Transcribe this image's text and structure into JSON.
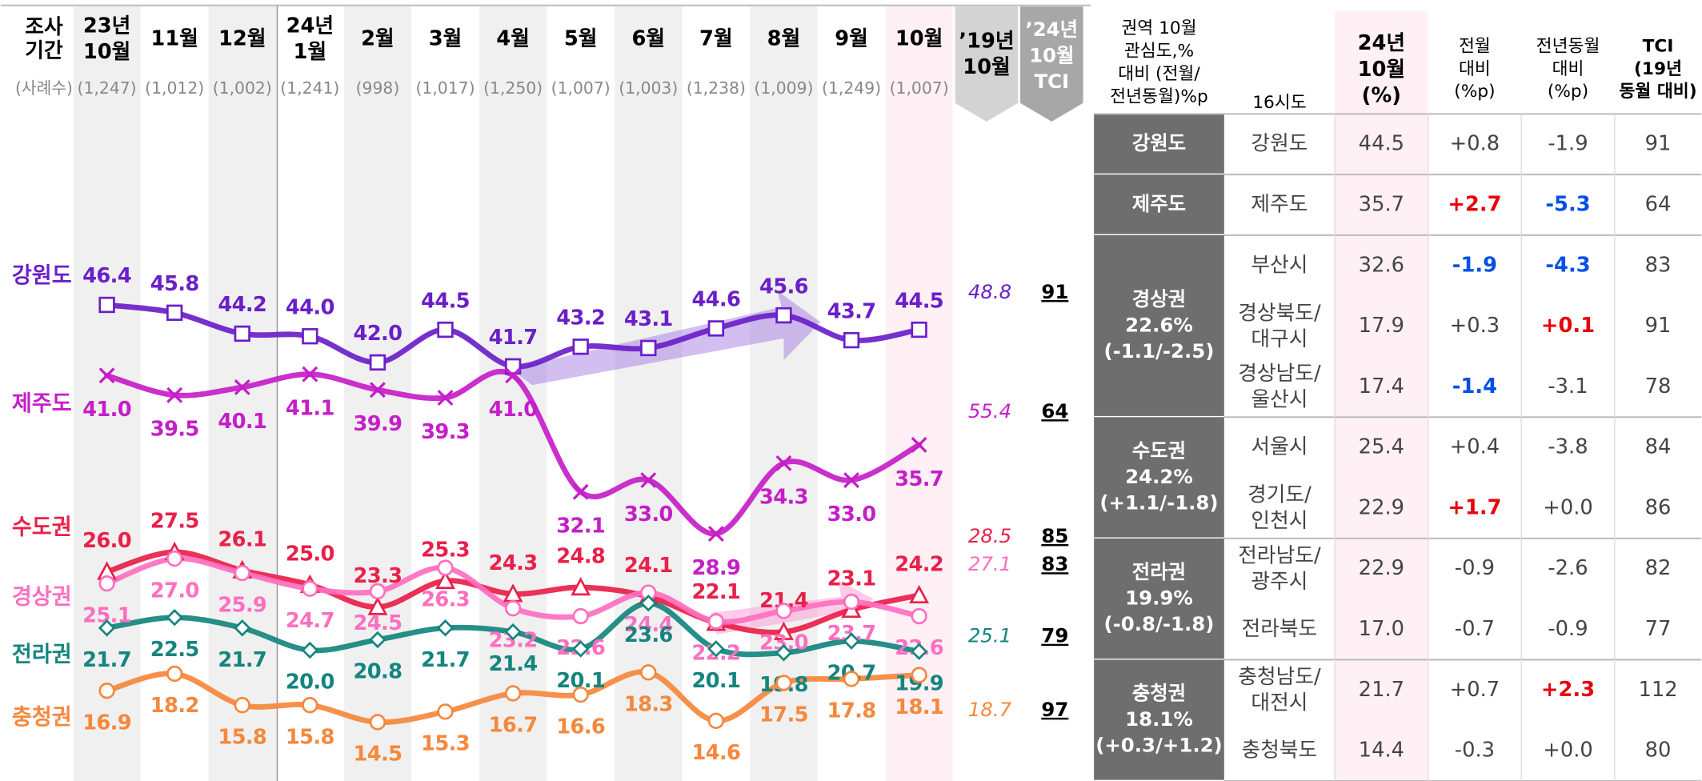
{
  "chart_data": {
    "type": "line",
    "period_label": "조사\n기간",
    "sample_label": "(사례수)",
    "categories": [
      "23년\n10월",
      "11월",
      "12월",
      "24년\n1월",
      "2월",
      "3월",
      "4월",
      "5월",
      "6월",
      "7월",
      "8월",
      "9월",
      "10월"
    ],
    "sample_sizes": [
      "(1,247)",
      "(1,012)",
      "(1,002)",
      "(1,241)",
      "(998)",
      "(1,017)",
      "(1,250)",
      "(1,007)",
      "(1,003)",
      "(1,238)",
      "(1,009)",
      "(1,249)",
      "(1,007)"
    ],
    "baseline_label": "’19년\n10월",
    "tci_label": "’24년\n10월\nTCI",
    "ylim": [
      10,
      61
    ],
    "series": [
      {
        "name": "강원도",
        "color": "#6a1fc8",
        "marker": "square",
        "values": [
          46.4,
          45.8,
          44.2,
          44.0,
          42.0,
          44.5,
          41.7,
          43.2,
          43.1,
          44.6,
          45.6,
          43.7,
          44.5
        ],
        "value_labels": [
          "46.4",
          "45.8",
          "44.2",
          "44.0",
          "42.0",
          "44.5",
          "41.7",
          "43.2",
          "43.1",
          "44.6",
          "45.6",
          "43.7",
          "44.5"
        ],
        "baseline": 48.8,
        "tci": 91
      },
      {
        "name": "제주도",
        "color": "#c51ec8",
        "marker": "x",
        "values": [
          41.0,
          39.5,
          40.1,
          41.1,
          39.9,
          39.3,
          41.0,
          32.1,
          33.0,
          28.9,
          34.3,
          33.0,
          35.7
        ],
        "value_labels": [
          "41.0",
          "39.5",
          "40.1",
          "41.1",
          "39.9",
          "39.3",
          "41.0",
          "32.1",
          "33.0",
          "28.9",
          "34.3",
          "33.0",
          "35.7"
        ],
        "baseline": 55.4,
        "tci": 64
      },
      {
        "name": "수도권",
        "color": "#e8204a",
        "marker": "triangle",
        "values": [
          26.0,
          27.5,
          26.1,
          25.0,
          23.3,
          25.3,
          24.3,
          24.8,
          24.1,
          22.1,
          21.4,
          23.1,
          24.2
        ],
        "value_labels": [
          "26.0",
          "27.5",
          "26.1",
          "25.0",
          "23.3",
          "25.3",
          "24.3",
          "24.8",
          "24.1",
          "22.1",
          "21.4",
          "23.1",
          "24.2"
        ],
        "baseline": 28.5,
        "tci": 85
      },
      {
        "name": "경상권",
        "color": "#ff6fbf",
        "marker": "circle",
        "values": [
          25.1,
          27.0,
          25.9,
          24.7,
          24.5,
          26.3,
          23.2,
          22.6,
          24.4,
          22.2,
          23.0,
          23.7,
          22.6
        ],
        "value_labels": [
          "25.1",
          "27.0",
          "25.9",
          "24.7",
          "24.5",
          "26.3",
          "23.2",
          "22.6",
          "24.4",
          "22.2",
          "23.0",
          "23.7",
          "22.6"
        ],
        "baseline": 27.1,
        "tci": 83
      },
      {
        "name": "전라권",
        "color": "#14857e",
        "marker": "diamond",
        "values": [
          21.7,
          22.5,
          21.7,
          20.0,
          20.8,
          21.7,
          21.4,
          20.1,
          23.6,
          20.1,
          19.8,
          20.7,
          19.9
        ],
        "value_labels": [
          "21.7",
          "22.5",
          "21.7",
          "20.0",
          "20.8",
          "21.7",
          "21.4",
          "20.1",
          "23.6",
          "20.1",
          "19.8",
          "20.7",
          "19.9"
        ],
        "baseline": 25.1,
        "tci": 79
      },
      {
        "name": "충청권",
        "color": "#f5883c",
        "marker": "circle",
        "values": [
          16.9,
          18.2,
          15.8,
          15.8,
          14.5,
          15.3,
          16.7,
          16.6,
          18.3,
          14.6,
          17.5,
          17.8,
          18.1
        ],
        "value_labels": [
          "16.9",
          "18.2",
          "15.8",
          "15.8",
          "14.5",
          "15.3",
          "16.7",
          "16.6",
          "18.3",
          "14.6",
          "17.5",
          "17.8",
          "18.1"
        ],
        "baseline": 18.7,
        "tci": 97
      }
    ]
  },
  "table": {
    "header": [
      "권역 10월\n관심도,%\n대비 (전월/\n전년동월)%p",
      "16시도",
      "24년\n10월\n(%)",
      "전월\n대비\n(%p)",
      "전년동월\n대비\n(%p)",
      "TCI\n(19년\n동월 대비)"
    ],
    "groups": [
      {
        "region": "강원도",
        "rows": [
          [
            "강원도",
            "44.5",
            "+0.8",
            "-1.9",
            "91"
          ]
        ]
      },
      {
        "region": "제주도",
        "rows": [
          [
            "제주도",
            "35.7",
            {
              "text": "+2.7",
              "color": "#e8000b"
            },
            {
              "text": "-5.3",
              "color": "#0050e6"
            },
            "64"
          ]
        ]
      },
      {
        "region": "경상권\n22.6%\n(-1.1/-2.5)",
        "rows": [
          [
            "부산시",
            "32.6",
            {
              "text": "-1.9",
              "color": "#0050e6"
            },
            {
              "text": "-4.3",
              "color": "#0050e6"
            },
            "83"
          ],
          [
            "경상북도/\n대구시",
            "17.9",
            "+0.3",
            {
              "text": "+0.1",
              "color": "#e8000b"
            },
            "91"
          ],
          [
            "경상남도/\n울산시",
            "17.4",
            {
              "text": "-1.4",
              "color": "#0050e6"
            },
            "-3.1",
            "78"
          ]
        ]
      },
      {
        "region": "수도권\n24.2%\n(+1.1/-1.8)",
        "rows": [
          [
            "서울시",
            "25.4",
            "+0.4",
            "-3.8",
            "84"
          ],
          [
            "경기도/\n인천시",
            "22.9",
            {
              "text": "+1.7",
              "color": "#e8000b"
            },
            "+0.0",
            "86"
          ]
        ]
      },
      {
        "region": "전라권\n19.9%\n(-0.8/-1.8)",
        "rows": [
          [
            "전라남도/\n광주시",
            "22.9",
            "-0.9",
            "-2.6",
            "82"
          ],
          [
            "전라북도",
            "17.0",
            "-0.7",
            "-0.9",
            "77"
          ]
        ]
      },
      {
        "region": "충청권\n18.1%\n(+0.3/+1.2)",
        "rows": [
          [
            "충청남도/\n대전시",
            "21.7",
            "+0.7",
            {
              "text": "+2.3",
              "color": "#e8000b"
            },
            "112"
          ],
          [
            "충청북도",
            "14.4",
            "-0.3",
            "+0.0",
            "80"
          ]
        ]
      }
    ]
  }
}
